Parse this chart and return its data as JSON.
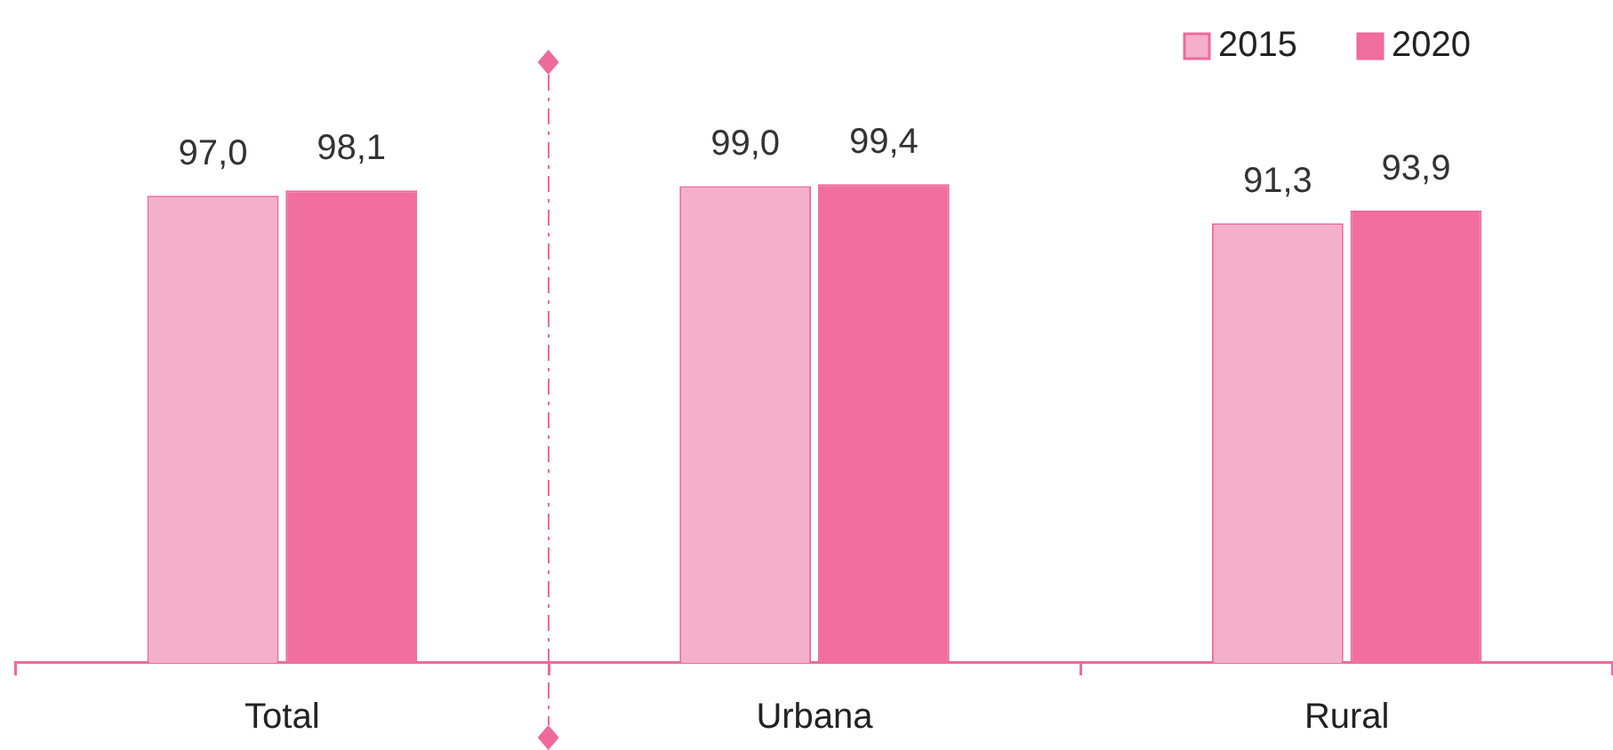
{
  "chart_data": {
    "type": "bar",
    "categories": [
      "Total",
      "Urbana",
      "Rural"
    ],
    "series": [
      {
        "name": "2015",
        "color": "#f4b0c9",
        "values": [
          97.0,
          99.0,
          91.3
        ],
        "value_labels": [
          "97,0",
          "99,0",
          "91,3"
        ]
      },
      {
        "name": "2020",
        "color": "#f06f9e",
        "values": [
          98.1,
          99.4,
          93.9
        ],
        "value_labels": [
          "98,1",
          "99,4",
          "93,9"
        ]
      }
    ],
    "tick_labels": "x",
    "legend": "top right"
  }
}
